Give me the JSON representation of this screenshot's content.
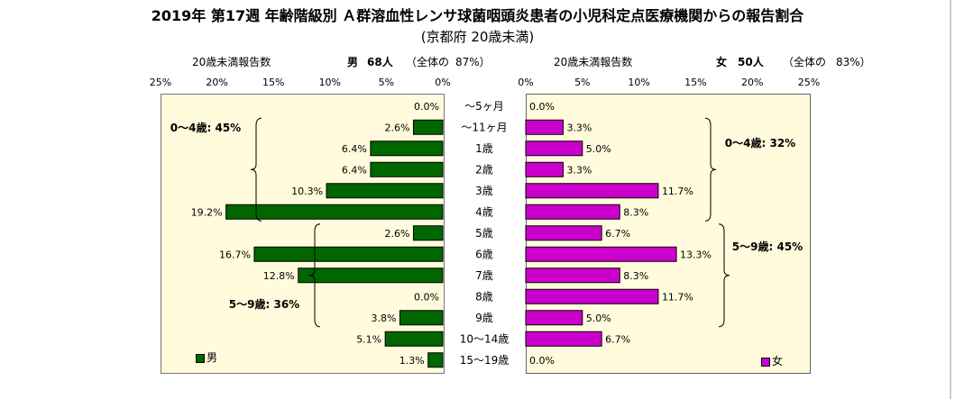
{
  "title": "2019年 第17週 年齢階級別 Ａ群溶血性レンサ球菌咽頭炎患者の小児科定点医療機関からの報告割合",
  "subtitle": "(京都府 20歳未満)",
  "left_header": {
    "label": "20歳未満報告数",
    "sex": "男",
    "count": "68人",
    "ratio_prefix": "（全体の",
    "ratio_value": "87%）"
  },
  "right_header": {
    "label": "20歳未満報告数",
    "sex": "女",
    "count": "50人",
    "ratio_prefix": "（全体の",
    "ratio_value": "83%）"
  },
  "colors": {
    "male": "#006600",
    "female": "#cc00cc",
    "plot_bg": "#fffbdc"
  },
  "chart_data": {
    "type": "bar",
    "orientation": "horizontal-pyramid",
    "categories": [
      "～5ヶ月",
      "～11ヶ月",
      "1歳",
      "2歳",
      "3歳",
      "4歳",
      "5歳",
      "6歳",
      "7歳",
      "8歳",
      "9歳",
      "10～14歳",
      "15～19歳"
    ],
    "series": [
      {
        "name": "男",
        "values": [
          0.0,
          2.6,
          6.4,
          6.4,
          10.3,
          19.2,
          2.6,
          16.7,
          12.8,
          0.0,
          3.8,
          5.1,
          1.3
        ],
        "labels": [
          "0.0%",
          "2.6%",
          "6.4%",
          "6.4%",
          "10.3%",
          "19.2%",
          "2.6%",
          "16.7%",
          "12.8%",
          "0.0%",
          "3.8%",
          "5.1%",
          "1.3%"
        ]
      },
      {
        "name": "女",
        "values": [
          0.0,
          3.3,
          5.0,
          3.3,
          11.7,
          8.3,
          6.7,
          13.3,
          8.3,
          11.7,
          5.0,
          6.7,
          0.0
        ],
        "labels": [
          "0.0%",
          "3.3%",
          "5.0%",
          "3.3%",
          "11.7%",
          "8.3%",
          "6.7%",
          "13.3%",
          "8.3%",
          "11.7%",
          "5.0%",
          "6.7%",
          "0.0%"
        ]
      }
    ],
    "xlim": [
      0,
      25
    ],
    "left_ticks": [
      "25%",
      "20%",
      "15%",
      "10%",
      "5%",
      "0%"
    ],
    "right_ticks": [
      "0%",
      "5%",
      "10%",
      "15%",
      "20%",
      "25%"
    ],
    "annotations": [
      {
        "text": "0～4歳: 45%",
        "series": "男",
        "from_category": 1,
        "to_category": 5
      },
      {
        "text": "5～9歳: 36%",
        "series": "男",
        "from_category": 6,
        "to_category": 10
      },
      {
        "text": "0～4歳: 32%",
        "series": "女",
        "from_category": 1,
        "to_category": 5
      },
      {
        "text": "5～9歳: 45%",
        "series": "女",
        "from_category": 6,
        "to_category": 10
      }
    ],
    "legend": {
      "male": "男",
      "female": "女"
    }
  }
}
